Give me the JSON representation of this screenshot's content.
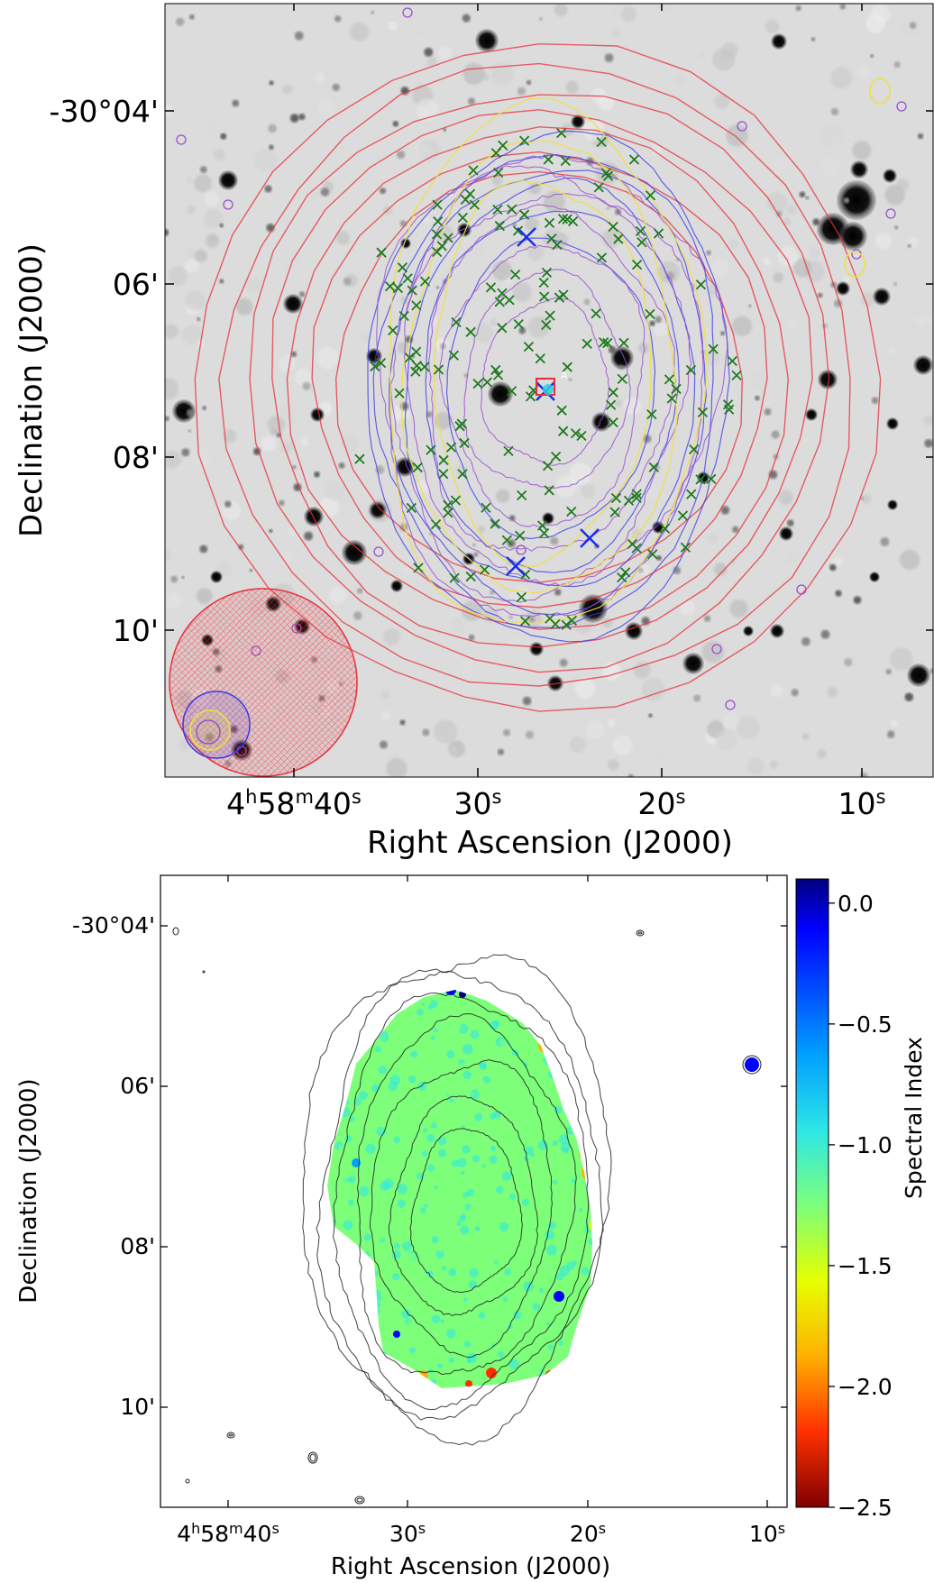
{
  "chart_data": [
    {
      "type": "image",
      "panel": "top",
      "xlabel": "Right Ascension (J2000)",
      "ylabel": "Declination (J2000)",
      "x_ticks": [
        {
          "h": "4",
          "m": "58",
          "s": "40",
          "label_h": "4",
          "label_m": "58",
          "label_s": "40"
        },
        {
          "s": "30"
        },
        {
          "s": "20"
        },
        {
          "s": "10"
        }
      ],
      "y_ticks": [
        "-30°04'",
        "06'",
        "08'",
        "10'"
      ],
      "background": "grayscale optical image with point sources",
      "overlays": [
        {
          "name": "red contours",
          "color": "#e8303a",
          "count": 7
        },
        {
          "name": "blue contours",
          "color": "#3a3ae8",
          "count": 6
        },
        {
          "name": "purple contours",
          "color": "#9a4fd0"
        },
        {
          "name": "yellow contours",
          "color": "#f0e040"
        },
        {
          "name": "green cross markers",
          "color": "#1e7a1e"
        },
        {
          "name": "blue x markers",
          "color": "#1a2ee6",
          "count": 4
        }
      ],
      "beam_circle": {
        "color": "#e8303a",
        "hatched": true
      }
    },
    {
      "type": "heatmap",
      "panel": "bottom",
      "xlabel": "Right Ascension (J2000)",
      "ylabel": "Declination (J2000)",
      "x_ticks": [
        {
          "h": "4",
          "m": "58",
          "s": "40",
          "label_h": "4",
          "label_m": "58",
          "label_s": "40"
        },
        {
          "s": "30"
        },
        {
          "s": "20"
        },
        {
          "s": "10"
        }
      ],
      "y_ticks": [
        "-30°04'",
        "06'",
        "08'",
        "10'"
      ],
      "colorbar": {
        "label": "Spectral Index",
        "range": [
          -2.5,
          0.1
        ],
        "ticks": [
          "0.0",
          "−0.5",
          "−1.0",
          "−1.5",
          "−2.0",
          "−2.5"
        ],
        "colormap": "jet_r",
        "colors": [
          "#00007f",
          "#0000ff",
          "#00a0ff",
          "#2ee6e6",
          "#7dff7a",
          "#e6ff00",
          "#ffb000",
          "#ff3000",
          "#7f0000"
        ]
      },
      "dominant_value": -1.1,
      "contour_color": "#222222"
    }
  ]
}
